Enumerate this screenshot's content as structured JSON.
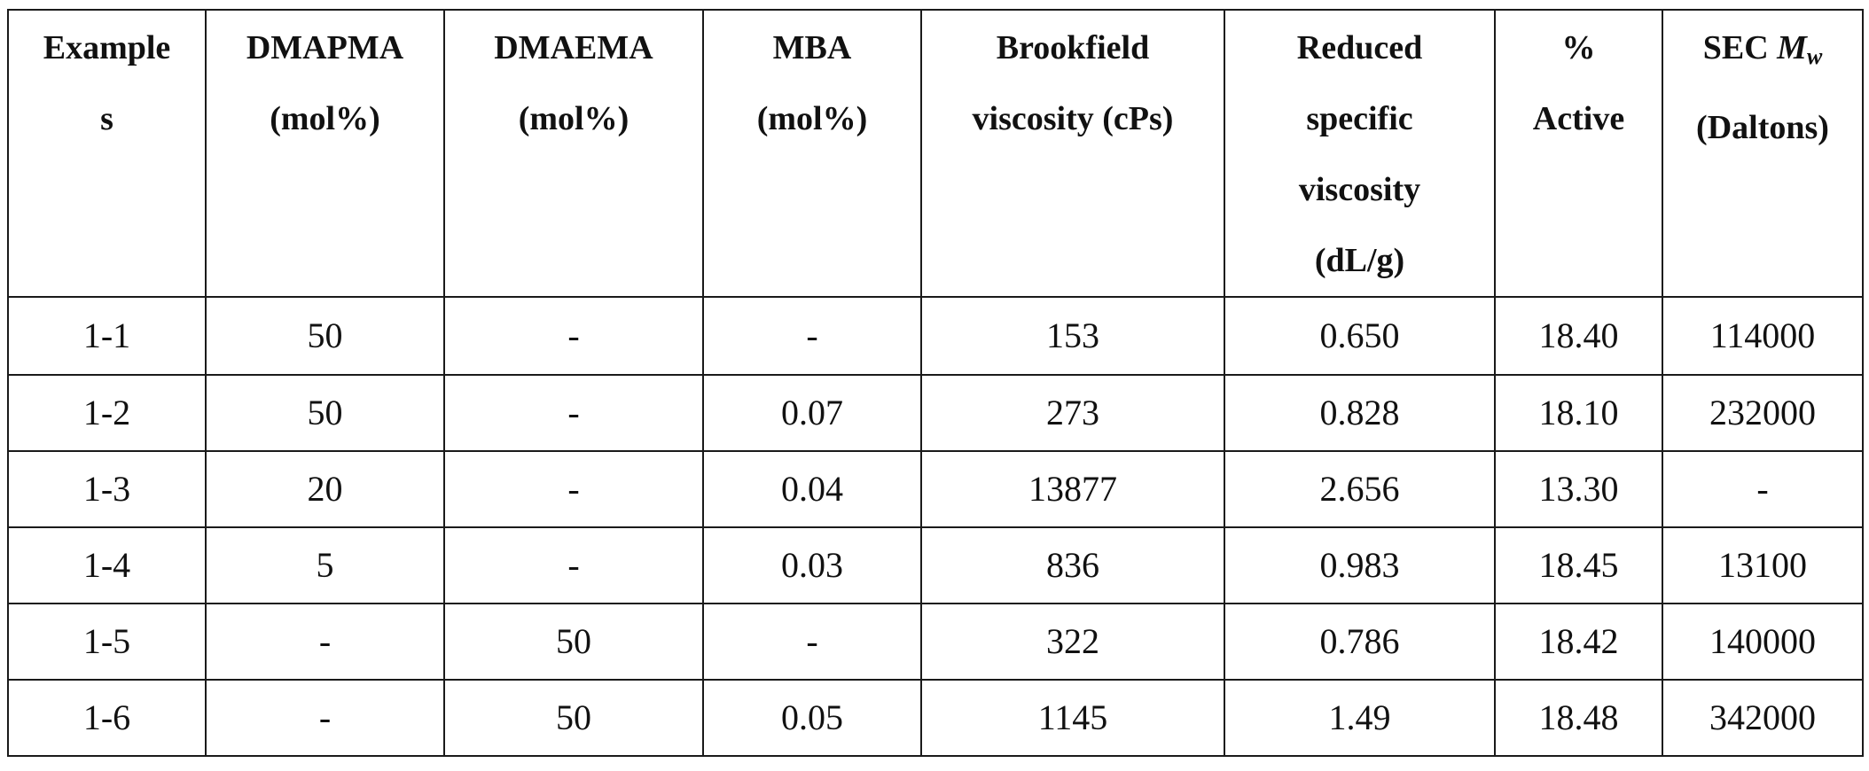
{
  "table": {
    "headers": [
      [
        "Example",
        "s"
      ],
      [
        "DMAPMA",
        "(mol%)"
      ],
      [
        "DMAEMA",
        "(mol%)"
      ],
      [
        "MBA",
        "(mol%)"
      ],
      [
        "Brookfield",
        "viscosity (cPs)"
      ],
      [
        "Reduced",
        "specific",
        "viscosity",
        "(dL/g)"
      ],
      [
        "%",
        "Active"
      ],
      [
        "SEC M",
        "(Daltons)"
      ]
    ],
    "mw_symbol": "M",
    "mw_subscript": "w",
    "mw_prefix": "SEC ",
    "rows": [
      [
        "1-1",
        "50",
        "-",
        "-",
        "153",
        "0.650",
        "18.40",
        "114000"
      ],
      [
        "1-2",
        "50",
        "-",
        "0.07",
        "273",
        "0.828",
        "18.10",
        "232000"
      ],
      [
        "1-3",
        "20",
        "-",
        "0.04",
        "13877",
        "2.656",
        "13.30",
        "-"
      ],
      [
        "1-4",
        "5",
        "-",
        "0.03",
        "836",
        "0.983",
        "18.45",
        "13100"
      ],
      [
        "1-5",
        "-",
        "50",
        "-",
        "322",
        "0.786",
        "18.42",
        "140000"
      ],
      [
        "1-6",
        "-",
        "50",
        "0.05",
        "1145",
        "1.49",
        "18.48",
        "342000"
      ]
    ]
  }
}
